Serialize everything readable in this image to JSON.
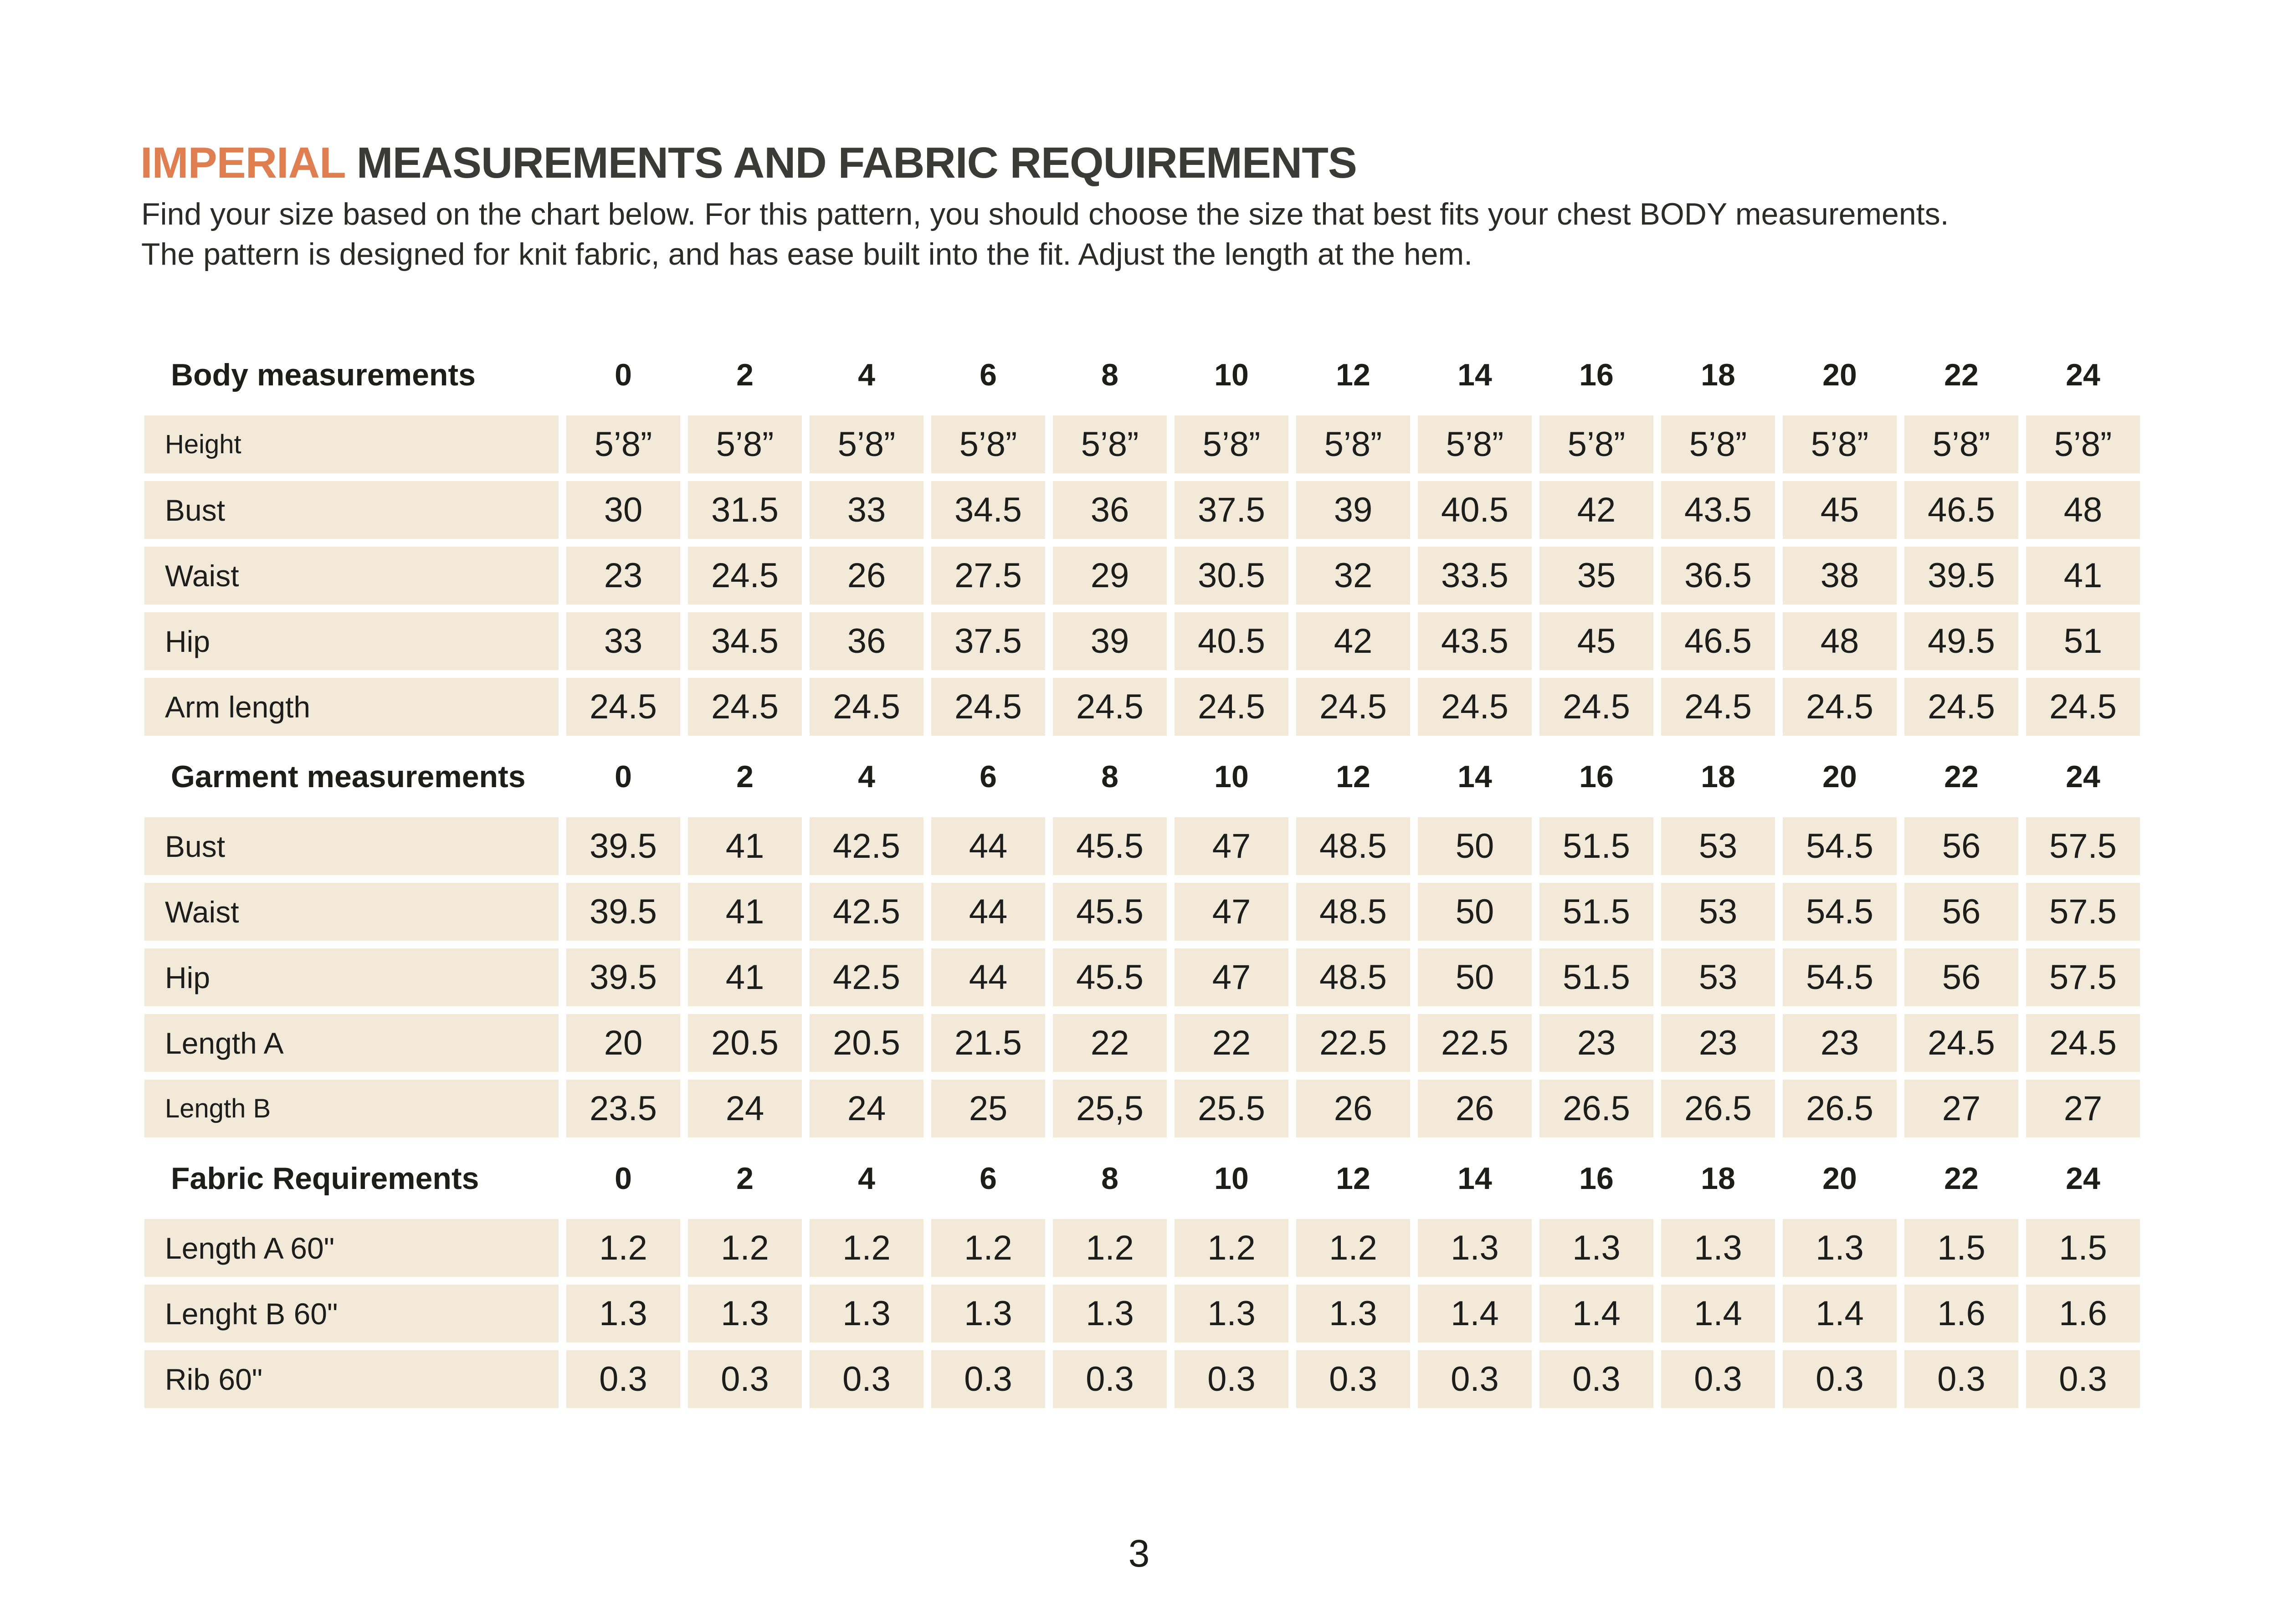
{
  "colors": {
    "accent": "#de7e51",
    "ink": "#1d1d1b",
    "title": "#3a3a38",
    "row_bg": "#f2e9d8"
  },
  "header": {
    "title_accent": "IMPERIAL",
    "title_rest": "MEASUREMENTS AND FABRIC REQUIREMENTS",
    "intro_lines": [
      "Find your size based on the chart below. For this pattern, you should choose the size that best fits your chest BODY measurements.",
      "The pattern is designed for knit fabric, and has ease built into the fit. Adjust the length at the hem."
    ]
  },
  "footer": {
    "page_number": "3"
  },
  "table": {
    "sizes": [
      "0",
      "2",
      "4",
      "6",
      "8",
      "10",
      "12",
      "14",
      "16",
      "18",
      "20",
      "22",
      "24"
    ],
    "sections": [
      {
        "header": "Body measurements",
        "rows": [
          {
            "label": "Height",
            "small": true,
            "values": [
              "5’8”",
              "5’8”",
              "5’8”",
              "5’8”",
              "5’8”",
              "5’8”",
              "5’8”",
              "5’8”",
              "5’8”",
              "5’8”",
              "5’8”",
              "5’8”",
              "5’8”"
            ]
          },
          {
            "label": "Bust",
            "values": [
              "30",
              "31.5",
              "33",
              "34.5",
              "36",
              "37.5",
              "39",
              "40.5",
              "42",
              "43.5",
              "45",
              "46.5",
              "48"
            ]
          },
          {
            "label": "Waist",
            "values": [
              "23",
              "24.5",
              "26",
              "27.5",
              "29",
              "30.5",
              "32",
              "33.5",
              "35",
              "36.5",
              "38",
              "39.5",
              "41"
            ]
          },
          {
            "label": "Hip",
            "values": [
              "33",
              "34.5",
              "36",
              "37.5",
              "39",
              "40.5",
              "42",
              "43.5",
              "45",
              "46.5",
              "48",
              "49.5",
              "51"
            ]
          },
          {
            "label": "Arm length",
            "values": [
              "24.5",
              "24.5",
              "24.5",
              "24.5",
              "24.5",
              "24.5",
              "24.5",
              "24.5",
              "24.5",
              "24.5",
              "24.5",
              "24.5",
              "24.5"
            ]
          }
        ]
      },
      {
        "header": "Garment measurements",
        "rows": [
          {
            "label": "Bust",
            "values": [
              "39.5",
              "41",
              "42.5",
              "44",
              "45.5",
              "47",
              "48.5",
              "50",
              "51.5",
              "53",
              "54.5",
              "56",
              "57.5"
            ]
          },
          {
            "label": "Waist",
            "values": [
              "39.5",
              "41",
              "42.5",
              "44",
              "45.5",
              "47",
              "48.5",
              "50",
              "51.5",
              "53",
              "54.5",
              "56",
              "57.5"
            ]
          },
          {
            "label": "Hip",
            "values": [
              "39.5",
              "41",
              "42.5",
              "44",
              "45.5",
              "47",
              "48.5",
              "50",
              "51.5",
              "53",
              "54.5",
              "56",
              "57.5"
            ]
          },
          {
            "label": "Length A",
            "values": [
              "20",
              "20.5",
              "20.5",
              "21.5",
              "22",
              "22",
              "22.5",
              "22.5",
              "23",
              "23",
              "23",
              "24.5",
              "24.5"
            ]
          },
          {
            "label": "Length B",
            "small": true,
            "values": [
              "23.5",
              "24",
              "24",
              "25",
              "25,5",
              "25.5",
              "26",
              "26",
              "26.5",
              "26.5",
              "26.5",
              "27",
              "27"
            ]
          }
        ]
      },
      {
        "header": "Fabric Requirements",
        "rows": [
          {
            "label": "Length A 60\"",
            "values": [
              "1.2",
              "1.2",
              "1.2",
              "1.2",
              "1.2",
              "1.2",
              "1.2",
              "1.3",
              "1.3",
              "1.3",
              "1.3",
              "1.5",
              "1.5"
            ]
          },
          {
            "label": "Lenght B 60\"",
            "values": [
              "1.3",
              "1.3",
              "1.3",
              "1.3",
              "1.3",
              "1.3",
              "1.3",
              "1.4",
              "1.4",
              "1.4",
              "1.4",
              "1.6",
              "1.6"
            ]
          },
          {
            "label": "Rib 60\"",
            "values": [
              "0.3",
              "0.3",
              "0.3",
              "0.3",
              "0.3",
              "0.3",
              "0.3",
              "0.3",
              "0.3",
              "0.3",
              "0.3",
              "0.3",
              "0.3"
            ]
          }
        ]
      }
    ]
  }
}
